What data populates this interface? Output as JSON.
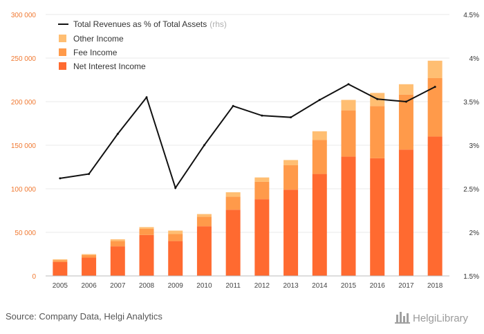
{
  "source": "Source: Company Data, Helgi Analytics",
  "brand": "HelgiLibrary",
  "chart_data": {
    "type": "bar",
    "stacked": true,
    "categories": [
      "2005",
      "2006",
      "2007",
      "2008",
      "2009",
      "2010",
      "2011",
      "2012",
      "2013",
      "2014",
      "2015",
      "2016",
      "2017",
      "2018"
    ],
    "series": [
      {
        "name": "Net Interest Income",
        "color": "#ff6a30",
        "values": [
          16000,
          21000,
          34000,
          47000,
          40000,
          57000,
          76000,
          88000,
          99000,
          117000,
          137000,
          135000,
          145000,
          160000
        ]
      },
      {
        "name": "Fee Income",
        "color": "#ff9a4a",
        "values": [
          2000,
          3000,
          6000,
          7000,
          8000,
          11000,
          15000,
          20000,
          28000,
          39000,
          53000,
          60000,
          63000,
          67000
        ]
      },
      {
        "name": "Other Income",
        "color": "#ffbe72",
        "values": [
          1000,
          1000,
          2000,
          2000,
          4000,
          3000,
          5000,
          5000,
          6000,
          10000,
          12000,
          15000,
          12000,
          20000
        ]
      }
    ],
    "line": {
      "name": "Total Revenues as % of Total Assets",
      "axis_note": "(rhs)",
      "color": "#111111",
      "values": [
        2.62,
        2.67,
        3.13,
        3.55,
        2.51,
        3.0,
        3.45,
        3.34,
        3.32,
        3.52,
        3.7,
        3.53,
        3.5,
        3.67
      ]
    },
    "y_left": {
      "ylim": [
        0,
        300000
      ],
      "ticks": [
        "0",
        "50 000",
        "100 000",
        "150 000",
        "200 000",
        "250 000",
        "300 000"
      ]
    },
    "y_right": {
      "ylim": [
        1.5,
        4.5
      ],
      "ticks": [
        "1.5%",
        "2%",
        "2.5%",
        "3%",
        "3.5%",
        "4%",
        "4.5%"
      ]
    },
    "legend_position": "top-left",
    "grid": true
  }
}
